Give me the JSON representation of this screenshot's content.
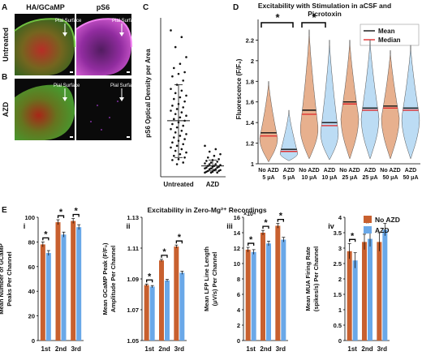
{
  "figure": {
    "panel_A": {
      "letter": "A",
      "title_left": "HA/GCaMP",
      "title_right": "pS6",
      "row_label": "Untreated",
      "pial_label": "Pial Surface"
    },
    "panel_B": {
      "letter": "B",
      "row_label": "AZD",
      "pial_label": "Pial Surface"
    },
    "panel_C": {
      "letter": "C"
    },
    "panel_D": {
      "letter": "D"
    },
    "panel_E": {
      "letter": "E",
      "title": "Excitability in Zero-Mg²⁺ Recordings"
    }
  },
  "colors": {
    "no_azd": "#c8602f",
    "azd": "#6aa8e8",
    "violin_orange": "#e7b08e",
    "violin_blue": "#bcdcf4",
    "mean_line": "#111111",
    "median_line": "#e03030",
    "micro_red": "#b52020",
    "micro_green": "#4a8a2a",
    "micro_magenta": "#b030b0"
  },
  "chart_data": [
    {
      "panel": "C",
      "type": "scatter",
      "ylabel": "pS6 Optical Density per Area",
      "categories": [
        "Untreated",
        "AZD"
      ],
      "series": [
        {
          "name": "Untreated",
          "mean": 62,
          "sd_low": 18,
          "sd_high": 105,
          "values": [
            170,
            162,
            150,
            138,
            130,
            125,
            120,
            118,
            115,
            110,
            105,
            100,
            98,
            95,
            92,
            90,
            88,
            85,
            82,
            80,
            78,
            76,
            74,
            72,
            70,
            68,
            66,
            64,
            62,
            60,
            58,
            56,
            54,
            52,
            50,
            48,
            46,
            44,
            42,
            40,
            38,
            36,
            34,
            32,
            30,
            28,
            26,
            24,
            22,
            20,
            18,
            16,
            15,
            12,
            10
          ]
        },
        {
          "name": "AZD",
          "mean": 8,
          "sd_low": 2,
          "sd_high": 15,
          "values": [
            32,
            28,
            25,
            22,
            20,
            18,
            16,
            15,
            14,
            13,
            12,
            11,
            10,
            10,
            9,
            8,
            8,
            7,
            7,
            6,
            6,
            5,
            5,
            4,
            4,
            3,
            3,
            2,
            2,
            1,
            1,
            0,
            0,
            0
          ]
        }
      ]
    },
    {
      "panel": "D",
      "type": "violin",
      "title": "Excitability with Stimulation in aCSF and Picrotoxin",
      "ylabel": "Fluorescence (F/F₀)",
      "ylim": [
        1.0,
        2.4
      ],
      "yticks": [
        "1",
        "1.2",
        "1.4",
        "1.6",
        "1.8",
        "2",
        "2.2"
      ],
      "legend": [
        "Mean",
        "Median"
      ],
      "categories": [
        "No AZD 5 μA",
        "AZD 5 μA",
        "No AZD 10 μA",
        "AZD 10 μA",
        "No AZD 25 μA",
        "AZD 25 μA",
        "No AZD 50 μA",
        "AZD 50 μA"
      ],
      "category_lines": [
        [
          "No AZD",
          "5 μA"
        ],
        [
          "AZD",
          "5 μA"
        ],
        [
          "No AZD",
          "10 μA"
        ],
        [
          "AZD",
          "10 μA"
        ],
        [
          "No AZD",
          "25 μA"
        ],
        [
          "AZD",
          "25 μA"
        ],
        [
          "No AZD",
          "50 μA"
        ],
        [
          "AZD",
          "50 μA"
        ]
      ],
      "groups": [
        "No AZD",
        "AZD",
        "No AZD",
        "AZD",
        "No AZD",
        "AZD",
        "No AZD",
        "AZD"
      ],
      "min": [
        1.02,
        1.03,
        1.05,
        1.04,
        1.05,
        1.05,
        1.05,
        1.05
      ],
      "max": [
        1.8,
        1.52,
        2.3,
        2.2,
        2.2,
        2.2,
        2.1,
        2.15
      ],
      "mode": [
        1.25,
        1.1,
        1.35,
        1.3,
        1.45,
        1.45,
        1.45,
        1.45
      ],
      "mean": [
        1.3,
        1.14,
        1.52,
        1.4,
        1.6,
        1.54,
        1.56,
        1.54
      ],
      "median": [
        1.27,
        1.12,
        1.48,
        1.37,
        1.58,
        1.52,
        1.54,
        1.52
      ],
      "significance": [
        {
          "pair": [
            0,
            1
          ],
          "label": "*"
        },
        {
          "pair": [
            2,
            3
          ],
          "label": "*"
        }
      ]
    },
    {
      "panel": "E-i",
      "type": "bar",
      "numeral": "i",
      "ylabel": "Mean Number of GCaMP Peaks Per Channel",
      "categories": [
        "1st",
        "2nd",
        "3rd"
      ],
      "ylim": [
        0,
        100
      ],
      "yticks": [
        "0",
        "20",
        "40",
        "60",
        "80",
        "100"
      ],
      "series": [
        {
          "name": "No AZD",
          "values": [
            78,
            96,
            97
          ],
          "errors": [
            2,
            2,
            2
          ]
        },
        {
          "name": "AZD",
          "values": [
            71,
            86,
            92
          ],
          "errors": [
            2,
            2,
            2
          ]
        }
      ],
      "significance": [
        "*",
        "*",
        "*"
      ]
    },
    {
      "panel": "E-ii",
      "type": "bar",
      "numeral": "ii",
      "ylabel": "Mean GCaMP Peak Amplitude (F/F₀) Per Channel",
      "categories": [
        "1st",
        "2nd",
        "3rd"
      ],
      "ylim": [
        1.05,
        1.13
      ],
      "yticks": [
        "1.05",
        "1.07",
        "1.09",
        "1.11",
        "1.13"
      ],
      "series": [
        {
          "name": "No AZD",
          "values": [
            1.086,
            1.102,
            1.111
          ],
          "errors": [
            0.0007,
            0.0007,
            0.001
          ]
        },
        {
          "name": "AZD",
          "values": [
            1.085,
            1.089,
            1.094
          ],
          "errors": [
            0.0007,
            0.0007,
            0.001
          ]
        }
      ],
      "significance": [
        "*",
        "*",
        "*"
      ]
    },
    {
      "panel": "E-iii",
      "type": "bar",
      "numeral": "iii",
      "ylabel": "Mean LFP Line Length (μV/s) Per Channel",
      "multiplier": "×10⁴",
      "categories": [
        "1st",
        "2nd",
        "3rd"
      ],
      "ylim": [
        0,
        16
      ],
      "yticks": [
        "0",
        "2",
        "4",
        "6",
        "8",
        "10",
        "12",
        "14",
        "16"
      ],
      "series": [
        {
          "name": "No AZD",
          "values": [
            11.8,
            14.0,
            14.9
          ],
          "errors": [
            0.3,
            0.3,
            0.3
          ]
        },
        {
          "name": "AZD",
          "values": [
            11.5,
            12.6,
            13.1
          ],
          "errors": [
            0.3,
            0.3,
            0.3
          ]
        }
      ],
      "significance": [
        "*",
        "*",
        "*"
      ]
    },
    {
      "panel": "E-iv",
      "type": "bar",
      "numeral": "iv",
      "ylabel": "Mean MUA Firing Rate (spikes/s) Per Channel",
      "categories": [
        "1st",
        "2nd",
        "3rd"
      ],
      "ylim": [
        0,
        4
      ],
      "yticks": [
        "0",
        "0.5",
        "1",
        "1.5",
        "2",
        "2.5",
        "3",
        "3.5",
        "4"
      ],
      "series": [
        {
          "name": "No AZD",
          "values": [
            2.9,
            3.2,
            3.2
          ],
          "errors": [
            0.25,
            0.25,
            0.3
          ]
        },
        {
          "name": "AZD",
          "values": [
            2.6,
            3.3,
            3.6
          ],
          "errors": [
            0.25,
            0.25,
            0.2
          ]
        }
      ],
      "significance": [
        "*",
        "*",
        ""
      ],
      "legend": [
        "No AZD",
        "AZD"
      ]
    }
  ]
}
